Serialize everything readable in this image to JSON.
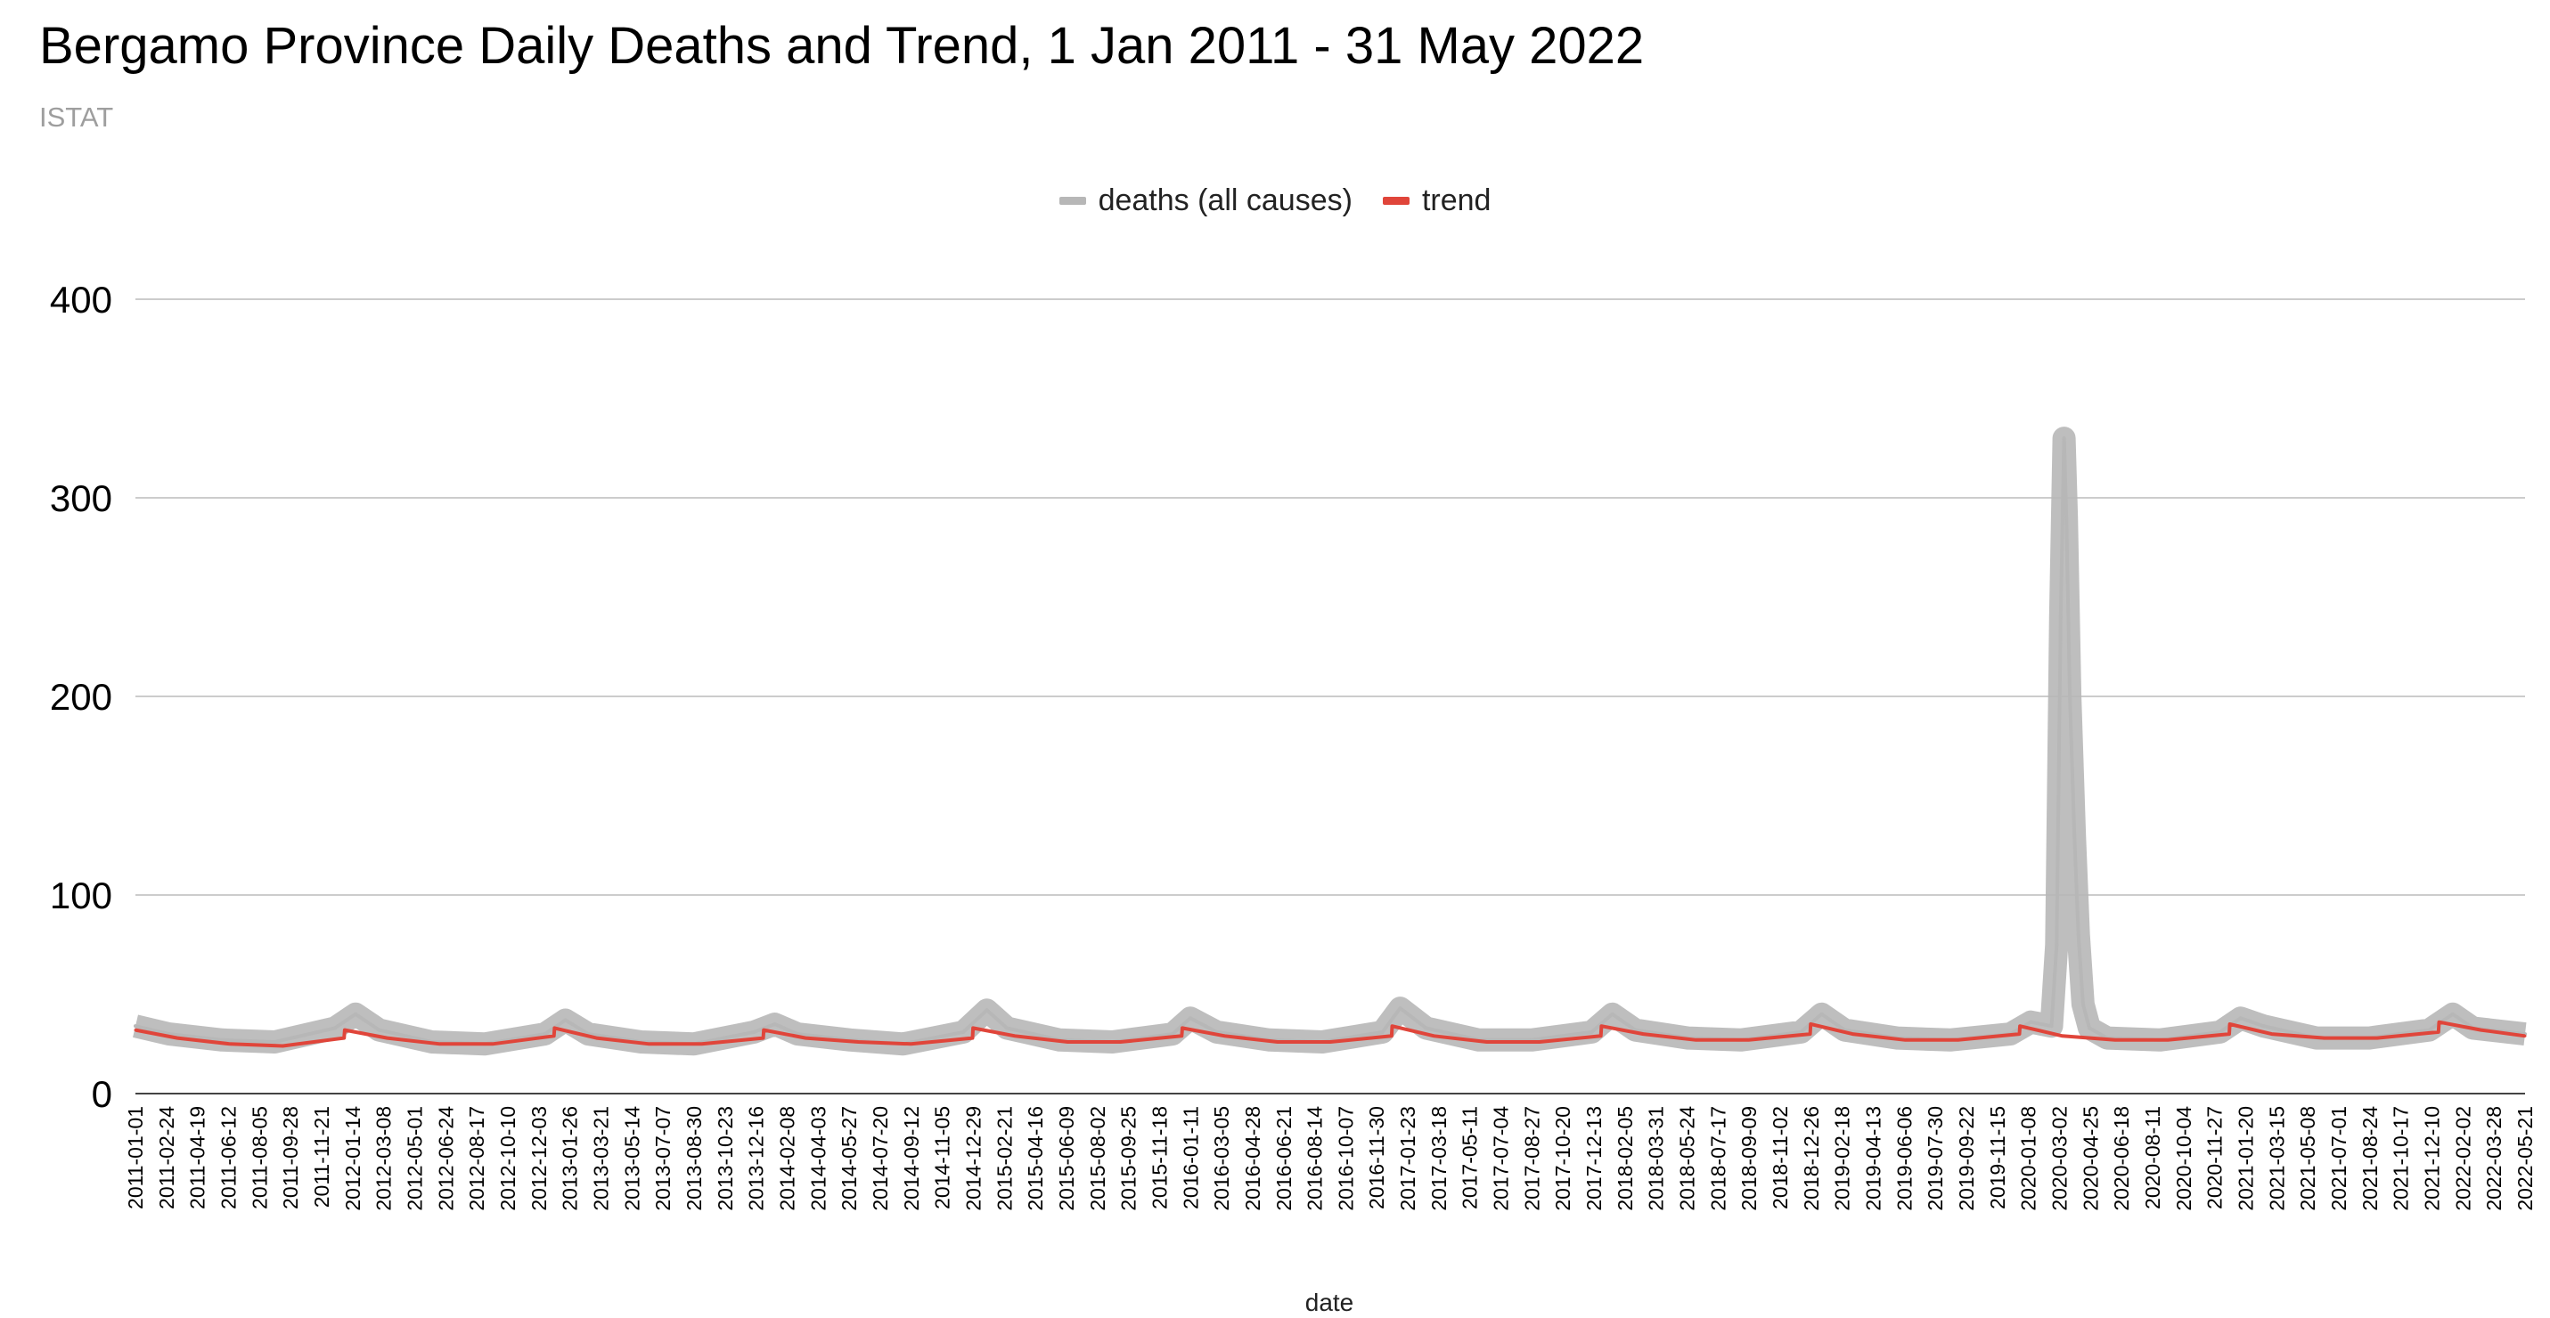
{
  "chart_data": {
    "type": "line",
    "title": "Bergamo Province Daily Deaths and Trend, 1 Jan 2011 - 31 May 2022",
    "subtitle": "ISTAT",
    "xlabel": "date",
    "ylabel": "",
    "ylim": [
      0,
      400
    ],
    "yticks": [
      "0",
      "100",
      "200",
      "300",
      "400"
    ],
    "grid": true,
    "legend_position": "top-center",
    "x_range": [
      "2011-01-01",
      "2022-05-31"
    ],
    "x_tick_labels": [
      "2011-01-01",
      "2011-02-24",
      "2011-04-19",
      "2011-06-12",
      "2011-08-05",
      "2011-09-28",
      "2011-11-21",
      "2012-01-14",
      "2012-03-08",
      "2012-05-01",
      "2012-06-24",
      "2012-08-17",
      "2012-10-10",
      "2012-12-03",
      "2013-01-26",
      "2013-03-21",
      "2013-05-14",
      "2013-07-07",
      "2013-08-30",
      "2013-10-23",
      "2013-12-16",
      "2014-02-08",
      "2014-04-03",
      "2014-05-27",
      "2014-07-20",
      "2014-09-12",
      "2014-11-05",
      "2014-12-29",
      "2015-02-21",
      "2015-04-16",
      "2015-06-09",
      "2015-08-02",
      "2015-09-25",
      "2015-11-18",
      "2016-01-11",
      "2016-03-05",
      "2016-04-28",
      "2016-06-21",
      "2016-08-14",
      "2016-10-07",
      "2016-11-30",
      "2017-01-23",
      "2017-03-18",
      "2017-05-11",
      "2017-07-04",
      "2017-08-27",
      "2017-10-20",
      "2017-12-13",
      "2018-02-05",
      "2018-03-31",
      "2018-05-24",
      "2018-07-17",
      "2018-09-09",
      "2018-11-02",
      "2018-12-26",
      "2019-02-18",
      "2019-04-13",
      "2019-06-06",
      "2019-07-30",
      "2019-09-22",
      "2019-11-15",
      "2020-01-08",
      "2020-03-02",
      "2020-04-25",
      "2020-06-18",
      "2020-08-11",
      "2020-10-04",
      "2020-11-27",
      "2021-01-20",
      "2021-03-15",
      "2021-05-08",
      "2021-07-01",
      "2021-08-24",
      "2021-10-17",
      "2021-12-10",
      "2022-02-02",
      "2022-03-28",
      "2022-05-21"
    ],
    "series": [
      {
        "name": "deaths (all causes)",
        "color": "#b7b7b7",
        "x": [
          "2011-01-01",
          "2011-03-01",
          "2011-06-01",
          "2011-09-01",
          "2011-12-15",
          "2012-01-20",
          "2012-03-01",
          "2012-06-01",
          "2012-09-01",
          "2012-12-15",
          "2013-01-20",
          "2013-03-01",
          "2013-06-01",
          "2013-09-01",
          "2013-12-15",
          "2014-01-20",
          "2014-03-01",
          "2014-06-01",
          "2014-09-01",
          "2014-12-15",
          "2015-01-25",
          "2015-03-01",
          "2015-06-01",
          "2015-09-01",
          "2015-12-15",
          "2016-01-15",
          "2016-03-01",
          "2016-06-01",
          "2016-09-01",
          "2016-12-15",
          "2017-01-15",
          "2017-03-01",
          "2017-06-01",
          "2017-09-01",
          "2017-12-15",
          "2018-01-20",
          "2018-03-01",
          "2018-06-01",
          "2018-09-01",
          "2018-12-15",
          "2019-01-20",
          "2019-03-01",
          "2019-06-01",
          "2019-09-01",
          "2019-12-15",
          "2020-01-20",
          "2020-02-25",
          "2020-03-05",
          "2020-03-12",
          "2020-03-18",
          "2020-03-22",
          "2020-03-28",
          "2020-04-05",
          "2020-04-12",
          "2020-04-20",
          "2020-05-01",
          "2020-06-01",
          "2020-09-01",
          "2020-12-15",
          "2021-01-20",
          "2021-03-01",
          "2021-06-01",
          "2021-09-01",
          "2021-12-15",
          "2022-01-25",
          "2022-03-01",
          "2022-05-31"
        ],
        "values": [
          34,
          30,
          27,
          26,
          33,
          40,
          32,
          26,
          25,
          30,
          37,
          30,
          26,
          25,
          31,
          35,
          30,
          27,
          25,
          31,
          42,
          33,
          27,
          26,
          30,
          38,
          31,
          27,
          26,
          31,
          43,
          33,
          27,
          27,
          31,
          40,
          32,
          28,
          27,
          31,
          40,
          32,
          28,
          27,
          30,
          36,
          34,
          75,
          240,
          330,
          290,
          200,
          130,
          80,
          45,
          33,
          28,
          27,
          31,
          38,
          34,
          28,
          28,
          32,
          40,
          33,
          30
        ]
      },
      {
        "name": "trend",
        "color": "#e0453a",
        "x": [
          "2011-01-01",
          "2011-03-15",
          "2011-06-15",
          "2011-09-15",
          "2011-12-31",
          "2012-01-01",
          "2012-03-15",
          "2012-06-15",
          "2012-09-15",
          "2012-12-31",
          "2013-01-01",
          "2013-03-15",
          "2013-06-15",
          "2013-09-15",
          "2013-12-31",
          "2014-01-01",
          "2014-03-15",
          "2014-06-15",
          "2014-09-15",
          "2014-12-31",
          "2015-01-01",
          "2015-03-15",
          "2015-06-15",
          "2015-09-15",
          "2015-12-31",
          "2016-01-01",
          "2016-03-15",
          "2016-06-15",
          "2016-09-15",
          "2016-12-31",
          "2017-01-01",
          "2017-03-15",
          "2017-06-15",
          "2017-09-15",
          "2017-12-31",
          "2018-01-01",
          "2018-03-15",
          "2018-06-15",
          "2018-09-15",
          "2018-12-31",
          "2019-01-01",
          "2019-03-15",
          "2019-06-15",
          "2019-09-15",
          "2019-12-31",
          "2020-01-01",
          "2020-03-15",
          "2020-06-15",
          "2020-09-15",
          "2020-12-31",
          "2021-01-01",
          "2021-03-15",
          "2021-06-15",
          "2021-09-15",
          "2021-12-31",
          "2022-01-01",
          "2022-03-15",
          "2022-05-31"
        ],
        "values": [
          32,
          28,
          25,
          24,
          28,
          32,
          28,
          25,
          25,
          29,
          33,
          28,
          25,
          25,
          28,
          32,
          28,
          26,
          25,
          28,
          33,
          29,
          26,
          26,
          29,
          33,
          29,
          26,
          26,
          29,
          34,
          29,
          26,
          26,
          29,
          34,
          30,
          27,
          27,
          30,
          35,
          30,
          27,
          27,
          30,
          34,
          29,
          27,
          27,
          30,
          35,
          30,
          28,
          28,
          31,
          36,
          32,
          29
        ]
      }
    ]
  }
}
